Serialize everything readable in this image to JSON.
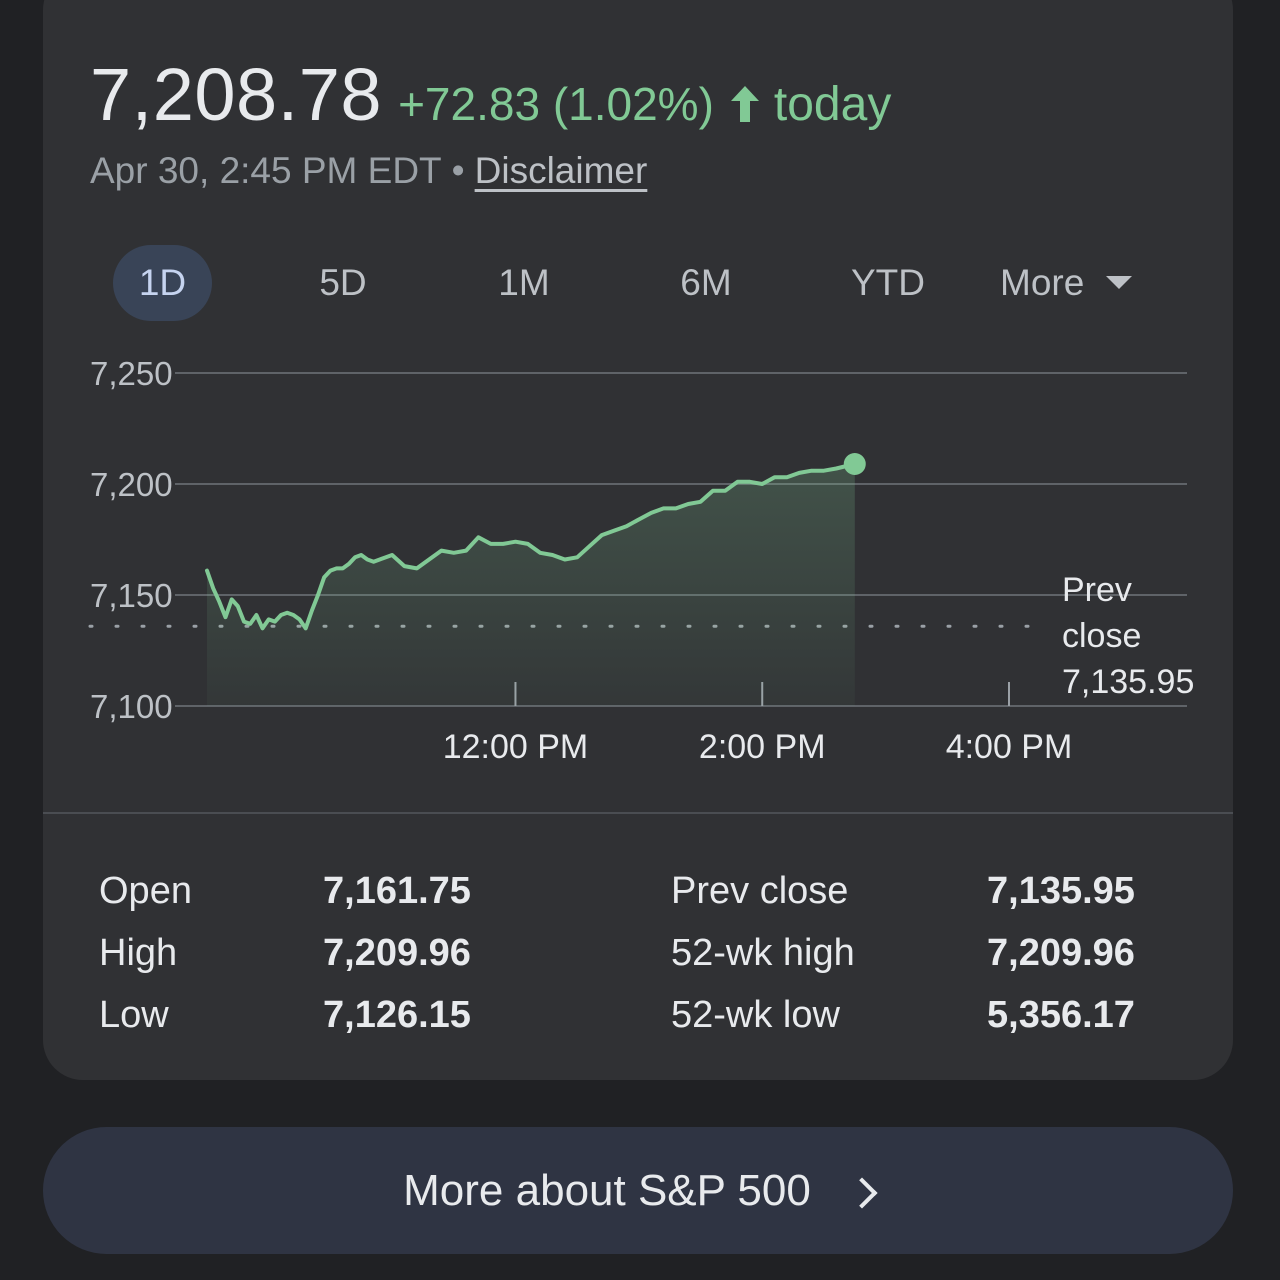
{
  "quote": {
    "price": "7,208.78",
    "change": "+72.83 (1.02%)",
    "direction_icon": "arrow-up-icon",
    "period": "today",
    "timestamp": "Apr 30, 2:45 PM EDT",
    "separator": "•",
    "disclaimer": "Disclaimer",
    "accent_color": "#81c995"
  },
  "range_tabs": [
    {
      "label": "1D",
      "active": true
    },
    {
      "label": "5D",
      "active": false
    },
    {
      "label": "1M",
      "active": false
    },
    {
      "label": "6M",
      "active": false
    },
    {
      "label": "YTD",
      "active": false
    },
    {
      "label": "More",
      "active": false
    }
  ],
  "chart_data": {
    "type": "area",
    "y_ticks": [
      "7,250",
      "7,200",
      "7,150",
      "7,100"
    ],
    "ylim": [
      7100,
      7250
    ],
    "x_ticks": [
      "12:00 PM",
      "2:00 PM",
      "4:00 PM"
    ],
    "x_tick_hours": [
      12,
      14,
      16
    ],
    "xlim_hours": [
      9.5,
      16.0
    ],
    "prev_close": {
      "label_line1": "Prev",
      "label_line2": "close",
      "value_text": "7,135.95",
      "value": 7135.95
    },
    "series": [
      {
        "x_hours": [
          9.5,
          9.55,
          9.6,
          9.65,
          9.7,
          9.75,
          9.8,
          9.85,
          9.9,
          9.95,
          10.0,
          10.05,
          10.1,
          10.15,
          10.2,
          10.25,
          10.3,
          10.35,
          10.4,
          10.45,
          10.5,
          10.55,
          10.6,
          10.65,
          10.7,
          10.75,
          10.8,
          10.85,
          10.9,
          10.95,
          11.0,
          11.1,
          11.2,
          11.3,
          11.4,
          11.5,
          11.6,
          11.7,
          11.8,
          11.9,
          12.0,
          12.1,
          12.2,
          12.3,
          12.4,
          12.5,
          12.6,
          12.7,
          12.8,
          12.9,
          13.0,
          13.1,
          13.2,
          13.3,
          13.4,
          13.5,
          13.6,
          13.7,
          13.8,
          13.9,
          14.0,
          14.1,
          14.2,
          14.3,
          14.4,
          14.5,
          14.6,
          14.75
        ],
        "values": [
          7161,
          7153,
          7147,
          7140,
          7148,
          7145,
          7138,
          7137,
          7141,
          7135,
          7139,
          7138,
          7141,
          7142,
          7141,
          7139,
          7135,
          7143,
          7150,
          7158,
          7161,
          7162,
          7162,
          7164,
          7167,
          7168,
          7166,
          7165,
          7166,
          7167,
          7168,
          7163,
          7162,
          7166,
          7170,
          7169,
          7170,
          7176,
          7173,
          7173,
          7174,
          7173,
          7169,
          7168,
          7166,
          7167,
          7172,
          7177,
          7179,
          7181,
          7184,
          7187,
          7189,
          7189,
          7191,
          7192,
          7197,
          7197,
          7201,
          7201,
          7200,
          7203,
          7203,
          7205,
          7206,
          7206,
          7207,
          7209
        ],
        "color": "#81c995"
      }
    ],
    "grid": true
  },
  "stats": {
    "left": [
      {
        "label": "Open",
        "value": "7,161.75"
      },
      {
        "label": "High",
        "value": "7,209.96"
      },
      {
        "label": "Low",
        "value": "7,126.15"
      }
    ],
    "right": [
      {
        "label": "Prev close",
        "value": "7,135.95"
      },
      {
        "label": "52-wk high",
        "value": "7,209.96"
      },
      {
        "label": "52-wk low",
        "value": "5,356.17"
      }
    ]
  },
  "more_button": {
    "label": "More about S&P 500",
    "icon": "chevron-right-icon"
  }
}
